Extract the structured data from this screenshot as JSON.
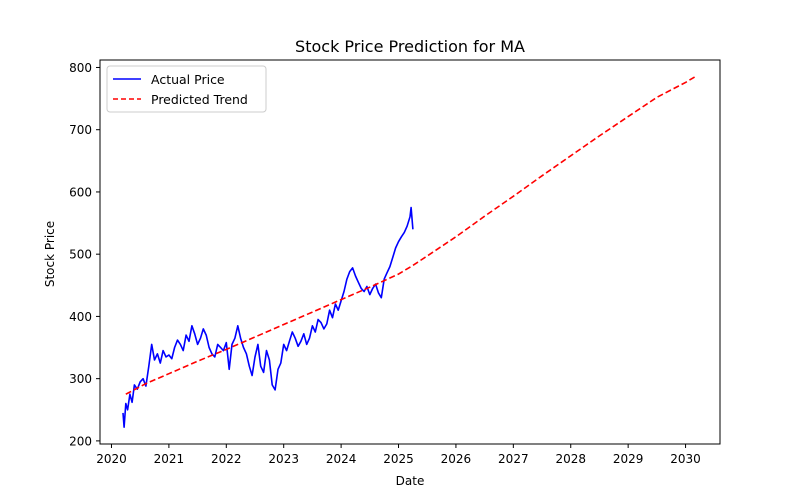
{
  "chart_data": {
    "type": "line",
    "title": "Stock Price Prediction for MA",
    "xlabel": "Date",
    "ylabel": "Stock Price",
    "xlim": [
      2019.8,
      2030.6
    ],
    "ylim": [
      195,
      812
    ],
    "xticks": [
      "2020",
      "2021",
      "2022",
      "2023",
      "2024",
      "2025",
      "2026",
      "2027",
      "2028",
      "2029",
      "2030"
    ],
    "yticks": [
      200,
      300,
      400,
      500,
      600,
      700,
      800
    ],
    "grid": false,
    "legend": {
      "placement": "top-left"
    },
    "series": [
      {
        "name": "Actual Price",
        "color": "#0000ff",
        "style": "solid",
        "x": [
          2020.2,
          2020.22,
          2020.25,
          2020.28,
          2020.32,
          2020.36,
          2020.4,
          2020.45,
          2020.5,
          2020.55,
          2020.6,
          2020.65,
          2020.7,
          2020.75,
          2020.8,
          2020.85,
          2020.9,
          2020.95,
          2021.0,
          2021.05,
          2021.1,
          2021.15,
          2021.2,
          2021.25,
          2021.3,
          2021.35,
          2021.4,
          2021.45,
          2021.5,
          2021.55,
          2021.6,
          2021.65,
          2021.7,
          2021.75,
          2021.8,
          2021.85,
          2021.9,
          2021.95,
          2022.0,
          2022.05,
          2022.1,
          2022.15,
          2022.2,
          2022.25,
          2022.3,
          2022.35,
          2022.4,
          2022.45,
          2022.5,
          2022.55,
          2022.6,
          2022.65,
          2022.7,
          2022.75,
          2022.8,
          2022.85,
          2022.9,
          2022.95,
          2023.0,
          2023.05,
          2023.1,
          2023.15,
          2023.2,
          2023.25,
          2023.3,
          2023.35,
          2023.4,
          2023.45,
          2023.5,
          2023.55,
          2023.6,
          2023.65,
          2023.7,
          2023.75,
          2023.8,
          2023.85,
          2023.9,
          2023.95,
          2024.0,
          2024.05,
          2024.1,
          2024.15,
          2024.2,
          2024.25,
          2024.3,
          2024.35,
          2024.4,
          2024.45,
          2024.5,
          2024.55,
          2024.6,
          2024.65,
          2024.7,
          2024.75,
          2024.8,
          2024.85,
          2024.9,
          2024.95,
          2025.0,
          2025.05,
          2025.1,
          2025.15,
          2025.2,
          2025.22,
          2025.25
        ],
        "y": [
          245,
          222,
          260,
          250,
          275,
          262,
          290,
          283,
          295,
          300,
          288,
          320,
          355,
          330,
          340,
          325,
          345,
          335,
          338,
          332,
          350,
          362,
          355,
          345,
          370,
          360,
          385,
          372,
          355,
          365,
          380,
          370,
          350,
          340,
          335,
          355,
          350,
          345,
          358,
          315,
          355,
          365,
          385,
          365,
          350,
          340,
          320,
          305,
          335,
          355,
          320,
          310,
          345,
          330,
          290,
          282,
          315,
          325,
          355,
          345,
          360,
          375,
          365,
          352,
          360,
          372,
          355,
          365,
          385,
          375,
          395,
          390,
          380,
          388,
          410,
          398,
          420,
          410,
          425,
          440,
          460,
          472,
          478,
          465,
          455,
          445,
          440,
          448,
          435,
          445,
          452,
          438,
          430,
          460,
          470,
          480,
          495,
          510,
          520,
          528,
          535,
          545,
          560,
          575,
          540
        ]
      },
      {
        "name": "Predicted Trend",
        "color": "#ff0000",
        "style": "dashed",
        "x": [
          2020.25,
          2020.6,
          2021.0,
          2021.5,
          2022.0,
          2022.5,
          2023.0,
          2023.5,
          2024.0,
          2024.5,
          2025.0,
          2025.25,
          2025.5,
          2026.0,
          2026.5,
          2027.0,
          2027.5,
          2028.0,
          2028.5,
          2029.0,
          2029.5,
          2030.0,
          2030.2
        ],
        "y": [
          275,
          292,
          308,
          328,
          347,
          367,
          387,
          407,
          427,
          447,
          468,
          482,
          497,
          528,
          561,
          593,
          626,
          658,
          690,
          721,
          752,
          776,
          787
        ]
      }
    ]
  }
}
